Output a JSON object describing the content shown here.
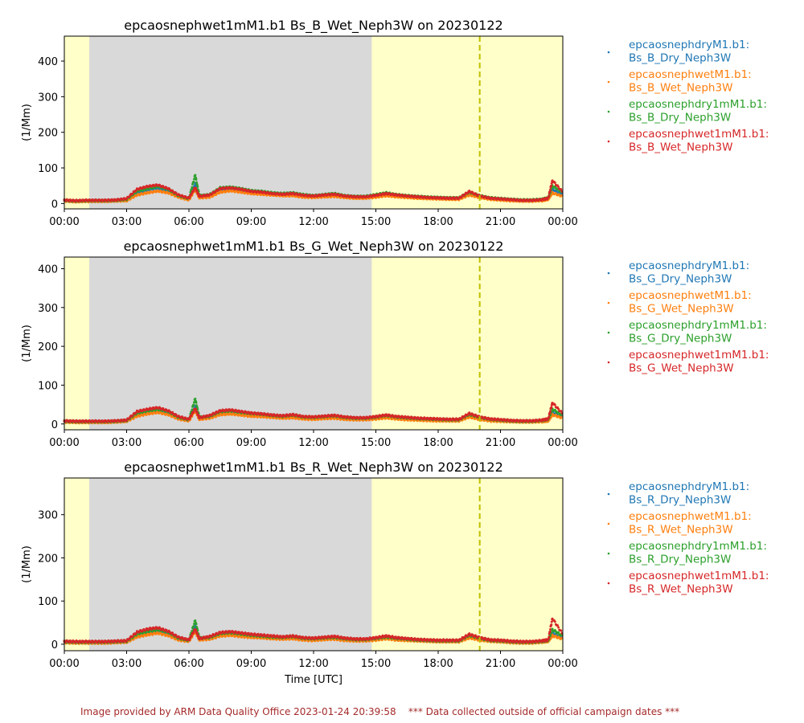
{
  "colors": {
    "series": [
      "#1f77b4",
      "#ff7f0e",
      "#2ca02c",
      "#d62728"
    ],
    "night_shade": "#d9d9d9",
    "day_shade": "#ffffc9",
    "marker_line": "#bfbf00"
  },
  "footer": {
    "text": "Image provided by ARM Data Quality Office 2023-01-24 20:39:58    *** Data collected outside of official campaign dates ***"
  },
  "chart_data": [
    {
      "type": "scatter",
      "title": "epcaosnephwet1mM1.b1 Bs_B_Wet_Neph3W on 20230122",
      "ylabel": "(1/Mm)",
      "xlabel": "",
      "x_ticks": [
        "00:00",
        "03:00",
        "06:00",
        "09:00",
        "12:00",
        "15:00",
        "18:00",
        "21:00",
        "00:00"
      ],
      "y_ticks": [
        0,
        100,
        200,
        300,
        400
      ],
      "ylim": [
        -15,
        470
      ],
      "xlim_hours": [
        0,
        24
      ],
      "shaded_ranges_hours": [
        {
          "start": 1.2,
          "end": 14.8,
          "kind": "night"
        }
      ],
      "marker_line_hours": 20.0,
      "legend": [
        "epcaosnephdryM1.b1:\nBs_B_Dry_Neph3W",
        "epcaosnephwetM1.b1:\nBs_B_Wet_Neph3W",
        "epcaosnephdry1mM1.b1:\nBs_B_Dry_Neph3W",
        "epcaosnephwet1mM1.b1:\nBs_B_Wet_Neph3W"
      ],
      "x": [
        0,
        0.5,
        1,
        1.5,
        2,
        2.5,
        3,
        3.5,
        4,
        4.5,
        5,
        5.5,
        6,
        6.3,
        6.5,
        7,
        7.5,
        8,
        8.5,
        9,
        9.5,
        10,
        10.5,
        11,
        11.5,
        12,
        12.5,
        13,
        13.5,
        14,
        14.5,
        15,
        15.5,
        16,
        16.5,
        17,
        17.5,
        18,
        18.5,
        19,
        19.5,
        20,
        20.5,
        21,
        21.5,
        22,
        22.5,
        23,
        23.3,
        23.5,
        24
      ],
      "series": [
        {
          "name": "epcaosnephdryM1.b1: Bs_B_Dry_Neph3W",
          "values": [
            8,
            6,
            7,
            7,
            7,
            8,
            10,
            30,
            38,
            44,
            35,
            20,
            12,
            55,
            20,
            22,
            40,
            42,
            38,
            32,
            30,
            28,
            25,
            26,
            22,
            20,
            22,
            24,
            20,
            18,
            18,
            22,
            25,
            22,
            20,
            18,
            16,
            15,
            14,
            14,
            28,
            20,
            14,
            12,
            10,
            8,
            8,
            10,
            14,
            40,
            25
          ]
        },
        {
          "name": "epcaosnephwetM1.b1: Bs_B_Wet_Neph3W",
          "values": [
            7,
            5,
            6,
            6,
            6,
            7,
            8,
            24,
            30,
            35,
            30,
            18,
            10,
            40,
            16,
            18,
            32,
            36,
            32,
            28,
            26,
            24,
            22,
            22,
            18,
            17,
            19,
            20,
            17,
            15,
            15,
            18,
            22,
            19,
            17,
            15,
            14,
            13,
            12,
            12,
            24,
            17,
            12,
            10,
            8,
            7,
            7,
            8,
            12,
            30,
            20
          ]
        },
        {
          "name": "epcaosnephdry1mM1.b1: Bs_B_Dry_Neph3W",
          "values": [
            9,
            7,
            8,
            8,
            8,
            9,
            12,
            35,
            42,
            48,
            40,
            22,
            14,
            80,
            22,
            25,
            44,
            46,
            42,
            36,
            34,
            30,
            28,
            30,
            25,
            22,
            25,
            28,
            22,
            20,
            20,
            25,
            30,
            25,
            22,
            20,
            18,
            17,
            16,
            16,
            32,
            22,
            16,
            14,
            12,
            10,
            10,
            12,
            16,
            50,
            30
          ]
        },
        {
          "name": "epcaosnephwet1mM1.b1: Bs_B_Wet_Neph3W",
          "values": [
            10,
            8,
            9,
            9,
            9,
            10,
            14,
            40,
            48,
            52,
            42,
            24,
            15,
            45,
            20,
            24,
            42,
            44,
            40,
            34,
            32,
            28,
            26,
            28,
            23,
            21,
            24,
            26,
            21,
            19,
            19,
            23,
            28,
            24,
            21,
            19,
            17,
            16,
            15,
            15,
            34,
            21,
            15,
            13,
            11,
            9,
            9,
            11,
            15,
            65,
            32
          ]
        }
      ]
    },
    {
      "type": "scatter",
      "title": "epcaosnephwet1mM1.b1 Bs_G_Wet_Neph3W on 20230122",
      "ylabel": "(1/Mm)",
      "xlabel": "",
      "x_ticks": [
        "00:00",
        "03:00",
        "06:00",
        "09:00",
        "12:00",
        "15:00",
        "18:00",
        "21:00",
        "00:00"
      ],
      "y_ticks": [
        0,
        100,
        200,
        300,
        400
      ],
      "ylim": [
        -15,
        430
      ],
      "xlim_hours": [
        0,
        24
      ],
      "shaded_ranges_hours": [
        {
          "start": 1.2,
          "end": 14.8,
          "kind": "night"
        }
      ],
      "marker_line_hours": 20.0,
      "legend": [
        "epcaosnephdryM1.b1:\nBs_G_Dry_Neph3W",
        "epcaosnephwetM1.b1:\nBs_G_Wet_Neph3W",
        "epcaosnephdry1mM1.b1:\nBs_G_Dry_Neph3W",
        "epcaosnephwet1mM1.b1:\nBs_G_Wet_Neph3W"
      ],
      "x": [
        0,
        0.5,
        1,
        1.5,
        2,
        2.5,
        3,
        3.5,
        4,
        4.5,
        5,
        5.5,
        6,
        6.3,
        6.5,
        7,
        7.5,
        8,
        8.5,
        9,
        9.5,
        10,
        10.5,
        11,
        11.5,
        12,
        12.5,
        13,
        13.5,
        14,
        14.5,
        15,
        15.5,
        16,
        16.5,
        17,
        17.5,
        18,
        18.5,
        19,
        19.5,
        20,
        20.5,
        21,
        21.5,
        22,
        22.5,
        23,
        23.3,
        23.5,
        24
      ],
      "series": [
        {
          "name": "epcaosnephdryM1.b1: Bs_G_Dry_Neph3W",
          "values": [
            6,
            5,
            5,
            5,
            5,
            6,
            8,
            24,
            30,
            34,
            28,
            15,
            10,
            45,
            15,
            18,
            28,
            30,
            27,
            24,
            22,
            20,
            18,
            20,
            16,
            15,
            17,
            18,
            15,
            13,
            13,
            16,
            19,
            16,
            14,
            12,
            11,
            10,
            9,
            9,
            22,
            15,
            10,
            9,
            7,
            6,
            6,
            8,
            10,
            30,
            18
          ]
        },
        {
          "name": "epcaosnephwetM1.b1: Bs_G_Wet_Neph3W",
          "values": [
            5,
            4,
            4,
            4,
            4,
            5,
            7,
            20,
            26,
            30,
            24,
            13,
            8,
            35,
            12,
            15,
            24,
            26,
            23,
            20,
            19,
            17,
            15,
            16,
            13,
            12,
            14,
            15,
            12,
            11,
            11,
            13,
            16,
            13,
            11,
            10,
            9,
            8,
            8,
            8,
            18,
            12,
            8,
            7,
            6,
            5,
            5,
            6,
            8,
            24,
            15
          ]
        },
        {
          "name": "epcaosnephdry1mM1.b1: Bs_G_Dry_Neph3W",
          "values": [
            7,
            6,
            6,
            6,
            6,
            7,
            9,
            28,
            34,
            38,
            32,
            17,
            11,
            65,
            17,
            20,
            32,
            34,
            30,
            27,
            25,
            22,
            20,
            23,
            18,
            17,
            19,
            21,
            17,
            15,
            15,
            18,
            22,
            18,
            16,
            14,
            13,
            12,
            11,
            11,
            25,
            17,
            12,
            10,
            8,
            7,
            7,
            9,
            12,
            38,
            22
          ]
        },
        {
          "name": "epcaosnephwet1mM1.b1: Bs_G_Wet_Neph3W",
          "values": [
            8,
            7,
            7,
            7,
            7,
            8,
            10,
            32,
            38,
            42,
            34,
            19,
            12,
            40,
            16,
            22,
            34,
            36,
            32,
            28,
            26,
            23,
            21,
            24,
            19,
            18,
            20,
            22,
            18,
            16,
            16,
            19,
            23,
            19,
            17,
            15,
            14,
            13,
            12,
            12,
            27,
            18,
            13,
            11,
            9,
            8,
            8,
            10,
            13,
            55,
            26
          ]
        }
      ]
    },
    {
      "type": "scatter",
      "title": "epcaosnephwet1mM1.b1 Bs_R_Wet_Neph3W on 20230122",
      "ylabel": "(1/Mm)",
      "xlabel": "Time [UTC]",
      "x_ticks": [
        "00:00",
        "03:00",
        "06:00",
        "09:00",
        "12:00",
        "15:00",
        "18:00",
        "21:00",
        "00:00"
      ],
      "y_ticks": [
        0,
        100,
        200,
        300
      ],
      "ylim": [
        -15,
        385
      ],
      "xlim_hours": [
        0,
        24
      ],
      "shaded_ranges_hours": [
        {
          "start": 1.2,
          "end": 14.8,
          "kind": "night"
        }
      ],
      "marker_line_hours": 20.0,
      "legend": [
        "epcaosnephdryM1.b1:\nBs_R_Dry_Neph3W",
        "epcaosnephwetM1.b1:\nBs_R_Wet_Neph3W",
        "epcaosnephdry1mM1.b1:\nBs_R_Dry_Neph3W",
        "epcaosnephwet1mM1.b1:\nBs_R_Wet_Neph3W"
      ],
      "x": [
        0,
        0.5,
        1,
        1.5,
        2,
        2.5,
        3,
        3.5,
        4,
        4.5,
        5,
        5.5,
        6,
        6.3,
        6.5,
        7,
        7.5,
        8,
        8.5,
        9,
        9.5,
        10,
        10.5,
        11,
        11.5,
        12,
        12.5,
        13,
        13.5,
        14,
        14.5,
        15,
        15.5,
        16,
        16.5,
        17,
        17.5,
        18,
        18.5,
        19,
        19.5,
        20,
        20.5,
        21,
        21.5,
        22,
        22.5,
        23,
        23.3,
        23.5,
        24
      ],
      "series": [
        {
          "name": "epcaosnephdryM1.b1: Bs_R_Dry_Neph3W",
          "values": [
            5,
            4,
            4,
            4,
            4,
            5,
            6,
            20,
            26,
            30,
            24,
            12,
            8,
            40,
            12,
            14,
            22,
            24,
            21,
            18,
            17,
            15,
            14,
            15,
            12,
            11,
            13,
            14,
            11,
            10,
            10,
            12,
            15,
            12,
            10,
            9,
            8,
            7,
            7,
            7,
            18,
            12,
            8,
            7,
            5,
            4,
            4,
            6,
            8,
            26,
            15
          ]
        },
        {
          "name": "epcaosnephwetM1.b1: Bs_R_Wet_Neph3W",
          "values": [
            4,
            3,
            3,
            3,
            3,
            4,
            5,
            17,
            22,
            26,
            20,
            10,
            7,
            30,
            10,
            12,
            19,
            21,
            18,
            16,
            15,
            13,
            12,
            13,
            10,
            9,
            11,
            12,
            9,
            8,
            8,
            10,
            13,
            10,
            9,
            8,
            7,
            6,
            6,
            6,
            15,
            10,
            7,
            6,
            4,
            3,
            3,
            5,
            7,
            20,
            12
          ]
        },
        {
          "name": "epcaosnephdry1mM1.b1: Bs_R_Dry_Neph3W",
          "values": [
            6,
            5,
            5,
            5,
            5,
            6,
            7,
            24,
            30,
            34,
            28,
            14,
            9,
            55,
            14,
            16,
            25,
            27,
            24,
            21,
            19,
            17,
            16,
            18,
            14,
            13,
            15,
            16,
            13,
            11,
            11,
            14,
            17,
            14,
            12,
            10,
            9,
            8,
            8,
            8,
            21,
            14,
            9,
            8,
            6,
            5,
            5,
            7,
            9,
            34,
            19
          ]
        },
        {
          "name": "epcaosnephwet1mM1.b1: Bs_R_Wet_Neph3W",
          "values": [
            7,
            6,
            6,
            6,
            6,
            7,
            8,
            28,
            35,
            38,
            30,
            16,
            10,
            35,
            13,
            18,
            27,
            29,
            26,
            23,
            21,
            19,
            17,
            19,
            15,
            14,
            16,
            18,
            14,
            12,
            12,
            15,
            19,
            15,
            13,
            11,
            10,
            9,
            9,
            9,
            23,
            15,
            10,
            9,
            7,
            6,
            6,
            8,
            10,
            60,
            23
          ]
        }
      ]
    }
  ]
}
